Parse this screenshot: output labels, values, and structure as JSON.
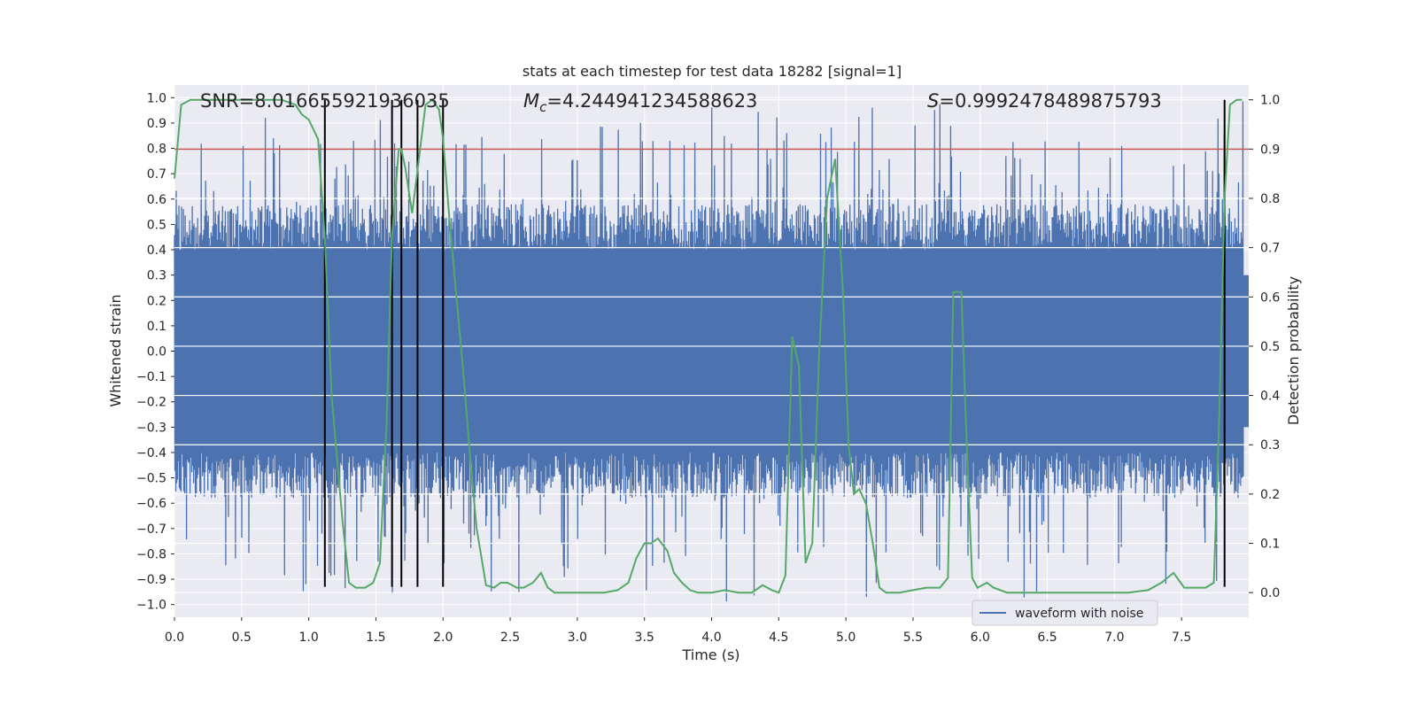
{
  "chart_data": {
    "type": "line",
    "title": "stats at each timestep for test data 18282 [signal=1]",
    "xlabel": "Time (s)",
    "ylabel": "Whitened strain",
    "y2label": "Detection probability",
    "xlim": [
      0.0,
      8.0
    ],
    "ylim": [
      -1.05,
      1.05
    ],
    "y2lim": [
      -0.05,
      1.03
    ],
    "xticks": [
      "0.0",
      "0.5",
      "1.0",
      "1.5",
      "2.0",
      "2.5",
      "3.0",
      "3.5",
      "4.0",
      "4.5",
      "5.0",
      "5.5",
      "6.0",
      "6.5",
      "7.0",
      "7.5"
    ],
    "yticks": [
      "1.0",
      "0.9",
      "0.8",
      "0.7",
      "0.6",
      "0.5",
      "0.4",
      "0.3",
      "0.2",
      "0.1",
      "0.0",
      "−0.1",
      "−0.2",
      "−0.3",
      "−0.4",
      "−0.5",
      "−0.6",
      "−0.7",
      "−0.8",
      "−0.9",
      "−1.0"
    ],
    "y2ticks": [
      "1.0",
      "0.9",
      "0.8",
      "0.7",
      "0.6",
      "0.5",
      "0.4",
      "0.3",
      "0.2",
      "0.1",
      "0.0"
    ],
    "grid": true,
    "legend_position": "lower-right",
    "stats": {
      "snr": "SNR=8.016655921936035",
      "mc_symbol": "M",
      "mc_sub": "c",
      "mc_value": "=4.244941234588623",
      "s_symbol": "S",
      "s_value": "=0.9992478489875793"
    },
    "threshold": {
      "axis": "right",
      "value": 0.9,
      "color": "#c44e52"
    },
    "event_lines": {
      "times": [
        1.12,
        1.62,
        1.69,
        1.81,
        2.0,
        7.82
      ],
      "y_range": [
        -0.93,
        1.0
      ],
      "color": "#000000"
    },
    "series": [
      {
        "name": "waveform with noise",
        "axis": "left",
        "color": "#4c72b0",
        "kind": "noise-envelope",
        "typical_range": [
          -0.4,
          0.4
        ],
        "peak_range": [
          -1.0,
          1.0
        ]
      },
      {
        "axis": "right",
        "color": "#55a868",
        "x": [
          0.0,
          0.05,
          0.12,
          0.25,
          0.4,
          0.6,
          0.8,
          0.9,
          0.95,
          1.0,
          1.07,
          1.12,
          1.17,
          1.25,
          1.3,
          1.35,
          1.42,
          1.48,
          1.53,
          1.58,
          1.62,
          1.67,
          1.69,
          1.72,
          1.77,
          1.82,
          1.87,
          1.92,
          1.97,
          2.0,
          2.05,
          2.1,
          2.15,
          2.2,
          2.25,
          2.32,
          2.38,
          2.43,
          2.48,
          2.55,
          2.6,
          2.67,
          2.73,
          2.78,
          2.83,
          2.9,
          3.0,
          3.1,
          3.2,
          3.3,
          3.38,
          3.44,
          3.5,
          3.55,
          3.6,
          3.67,
          3.72,
          3.78,
          3.84,
          3.9,
          4.0,
          4.1,
          4.2,
          4.3,
          4.38,
          4.45,
          4.5,
          4.55,
          4.6,
          4.65,
          4.7,
          4.75,
          4.8,
          4.86,
          4.92,
          4.98,
          5.02,
          5.06,
          5.1,
          5.15,
          5.2,
          5.25,
          5.3,
          5.4,
          5.5,
          5.6,
          5.7,
          5.76,
          5.8,
          5.83,
          5.86,
          5.9,
          5.94,
          5.98,
          6.05,
          6.1,
          6.2,
          6.35,
          6.5,
          6.7,
          6.9,
          7.1,
          7.25,
          7.35,
          7.44,
          7.52,
          7.6,
          7.68,
          7.74,
          7.78,
          7.82,
          7.86,
          7.91,
          7.95
        ],
        "y": [
          0.84,
          0.99,
          1.0,
          1.0,
          1.0,
          1.0,
          1.0,
          0.99,
          0.97,
          0.96,
          0.92,
          0.72,
          0.4,
          0.15,
          0.02,
          0.01,
          0.01,
          0.02,
          0.06,
          0.35,
          0.72,
          0.9,
          0.9,
          0.86,
          0.77,
          0.88,
          0.99,
          1.0,
          0.98,
          0.92,
          0.75,
          0.6,
          0.45,
          0.28,
          0.13,
          0.015,
          0.01,
          0.02,
          0.02,
          0.01,
          0.01,
          0.02,
          0.04,
          0.01,
          0.0,
          0.0,
          0.0,
          0.0,
          0.0,
          0.005,
          0.02,
          0.07,
          0.1,
          0.1,
          0.11,
          0.085,
          0.04,
          0.02,
          0.005,
          0.0,
          0.0,
          0.005,
          0.0,
          0.0,
          0.015,
          0.005,
          0.0,
          0.035,
          0.52,
          0.46,
          0.06,
          0.1,
          0.48,
          0.8,
          0.88,
          0.6,
          0.3,
          0.2,
          0.21,
          0.18,
          0.1,
          0.01,
          0.0,
          0.0,
          0.005,
          0.01,
          0.01,
          0.03,
          0.61,
          0.61,
          0.61,
          0.3,
          0.03,
          0.01,
          0.02,
          0.01,
          0.0,
          0.0,
          0.0,
          0.0,
          0.0,
          0.0,
          0.005,
          0.02,
          0.04,
          0.01,
          0.01,
          0.01,
          0.02,
          0.35,
          0.8,
          0.99,
          1.0,
          1.0
        ]
      }
    ]
  }
}
